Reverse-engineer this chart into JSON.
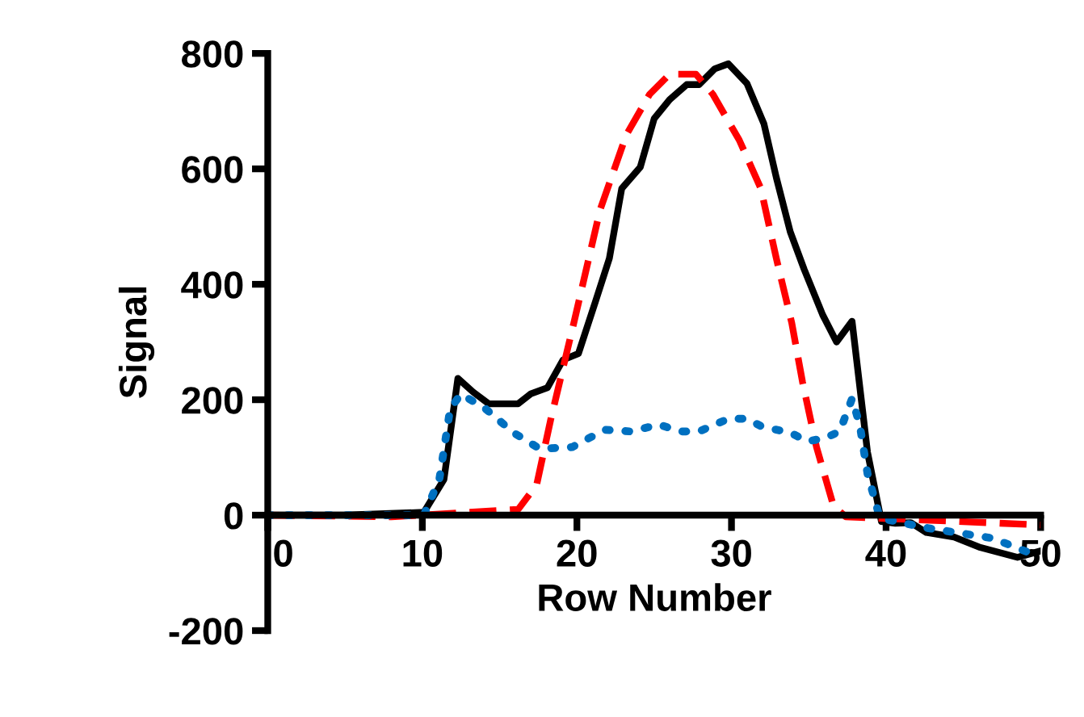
{
  "chart_data": {
    "type": "line",
    "xlabel": "Row Number",
    "ylabel": "Signal",
    "xlim": [
      0,
      50
    ],
    "ylim": [
      -200,
      800
    ],
    "xticks": [
      0,
      10,
      20,
      30,
      40,
      50
    ],
    "yticks": [
      -200,
      0,
      200,
      400,
      600,
      800
    ],
    "grid": false,
    "legend": false,
    "marker": "none",
    "series": [
      {
        "color": "#000000",
        "line_style": "solid",
        "x": [
          0,
          5,
          10.1,
          11.4,
          12.3,
          13.3,
          14.3,
          16.2,
          17.0,
          18.1,
          19.1,
          20.1,
          21.2,
          22.1,
          22.9,
          24.1,
          25.0,
          26.0,
          27.1,
          27.9,
          28.9,
          29.8,
          31.0,
          32.1,
          32.9,
          33.8,
          34.7,
          35.9,
          36.8,
          37.8,
          38.8,
          39.7,
          40.6,
          41.6,
          42.6,
          44.4,
          46.1,
          48.5,
          50
        ],
        "values": [
          0,
          0,
          5,
          62,
          237,
          213,
          193,
          193,
          210,
          221,
          269,
          280,
          370,
          445,
          566,
          603,
          687,
          720,
          746,
          746,
          773,
          782,
          748,
          678,
          585,
          491,
          426,
          347,
          300,
          336,
          109,
          -11,
          -14,
          -13,
          -30,
          -38,
          -56,
          -73,
          -62
        ]
      },
      {
        "color": "#ff0000",
        "line_style": "dashed",
        "x": [
          0,
          8,
          16.2,
          17.4,
          18.3,
          19.8,
          21.5,
          23.2,
          24.7,
          26.0,
          27.7,
          28.8,
          30.5,
          31.9,
          32.9,
          33.9,
          34.6,
          35.5,
          36.6,
          37.4,
          44,
          50
        ],
        "values": [
          0,
          -3,
          10,
          53,
          165,
          333,
          529,
          659,
          729,
          764,
          764,
          729,
          650,
          566,
          445,
          333,
          230,
          118,
          16,
          -3,
          -10,
          -17
        ]
      },
      {
        "color": "#0070c0",
        "line_style": "dotted",
        "x": [
          0,
          10.1,
          11.1,
          11.8,
          12.5,
          14.1,
          15.9,
          17.6,
          19.7,
          21.8,
          23.5,
          25.3,
          26.7,
          27.9,
          29.8,
          31.0,
          32.0,
          33.8,
          34.9,
          36.0,
          37.0,
          37.8,
          38.3,
          38.8,
          39.6,
          42.6,
          46.9,
          50
        ],
        "values": [
          0,
          0,
          62,
          184,
          210,
          184,
          143,
          115,
          118,
          148,
          145,
          157,
          145,
          145,
          167,
          167,
          153,
          143,
          128,
          133,
          145,
          202,
          156,
          72,
          -5,
          -22,
          -40,
          -73
        ]
      }
    ]
  }
}
